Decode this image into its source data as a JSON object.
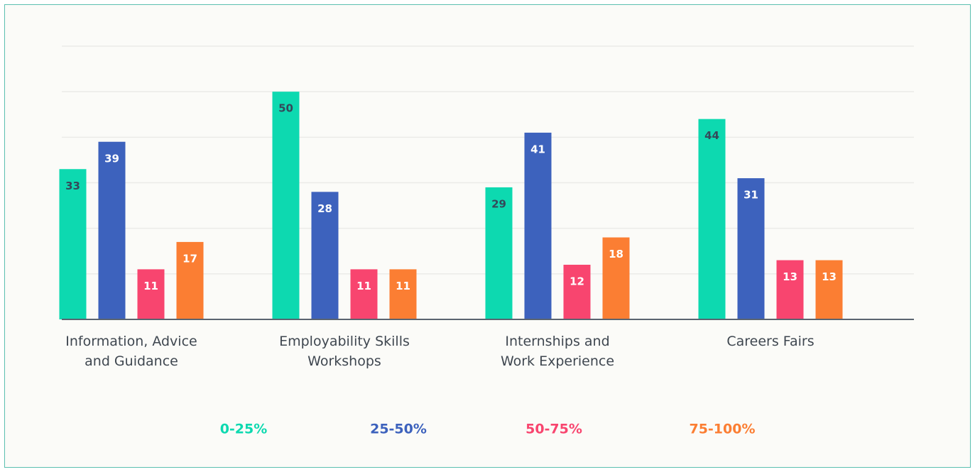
{
  "chart_data": {
    "type": "bar",
    "categories": [
      "Information, Advice\nand Guidance",
      "Employability Skills\nWorkshops",
      "Internships and\nWork Experience",
      "Careers Fairs"
    ],
    "series": [
      {
        "name": "0-25%",
        "color": "#0dd9b0",
        "values": [
          33,
          50,
          29,
          44
        ]
      },
      {
        "name": "25-50%",
        "color": "#3d62bd",
        "values": [
          39,
          28,
          41,
          31
        ]
      },
      {
        "name": "50-75%",
        "color": "#f8456f",
        "values": [
          11,
          11,
          12,
          13
        ]
      },
      {
        "name": "75-100%",
        "color": "#fb7e33",
        "values": [
          17,
          11,
          18,
          13
        ]
      }
    ],
    "ylim": [
      0,
      60
    ],
    "yticks": [
      0,
      10,
      20,
      30,
      40,
      50,
      60
    ],
    "grid": true,
    "legend": "bottom"
  }
}
